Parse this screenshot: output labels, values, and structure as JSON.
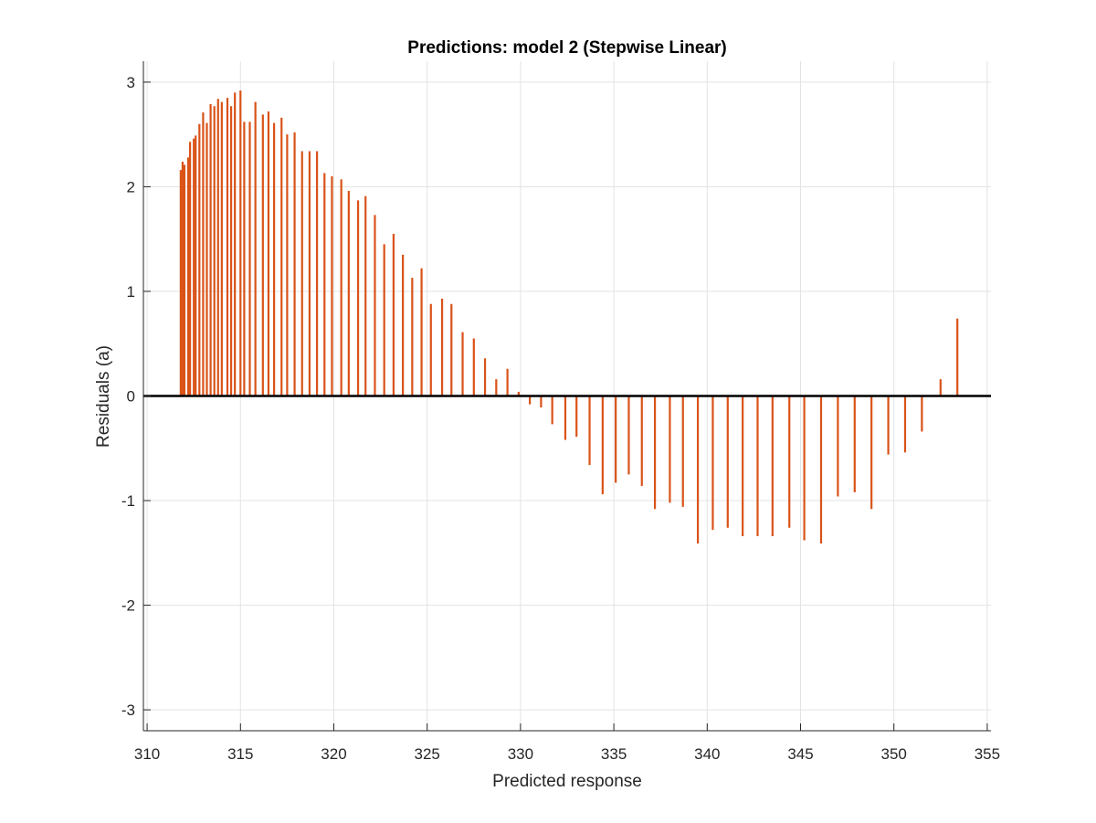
{
  "chart_data": {
    "type": "bar",
    "title": "Predictions: model 2 (Stepwise Linear)",
    "xlabel": "Predicted response",
    "ylabel": "Residuals (a)",
    "xlim": [
      309.8,
      355.2
    ],
    "ylim": [
      -3.2,
      3.2
    ],
    "xticks": [
      310,
      315,
      320,
      325,
      330,
      335,
      340,
      345,
      350,
      355
    ],
    "yticks": [
      -3,
      -2,
      -1,
      0,
      1,
      2,
      3
    ],
    "grid": true,
    "bar_color": "#D95319",
    "zero_line_color": "#000000",
    "x": [
      311.8,
      311.9,
      312.0,
      312.2,
      312.3,
      312.5,
      312.6,
      312.8,
      313.0,
      313.2,
      313.4,
      313.6,
      313.8,
      314.0,
      314.3,
      314.5,
      314.7,
      315.0,
      315.2,
      315.5,
      315.8,
      316.2,
      316.5,
      316.8,
      317.2,
      317.5,
      317.9,
      318.3,
      318.7,
      319.1,
      319.5,
      319.9,
      320.4,
      320.8,
      321.3,
      321.7,
      322.2,
      322.7,
      323.2,
      323.7,
      324.2,
      324.7,
      325.2,
      325.8,
      326.3,
      326.9,
      327.5,
      328.1,
      328.7,
      329.3,
      329.9,
      330.5,
      331.1,
      331.7,
      332.4,
      333.0,
      333.7,
      334.4,
      335.1,
      335.8,
      336.5,
      337.2,
      338.0,
      338.7,
      339.5,
      340.3,
      341.1,
      341.9,
      342.7,
      343.5,
      344.4,
      345.2,
      346.1,
      347.0,
      347.9,
      348.8,
      349.7,
      350.6,
      351.5,
      352.5,
      353.4
    ],
    "y": [
      2.16,
      2.24,
      2.21,
      2.28,
      2.43,
      2.46,
      2.49,
      2.6,
      2.71,
      2.61,
      2.79,
      2.77,
      2.84,
      2.81,
      2.85,
      2.77,
      2.9,
      2.92,
      2.62,
      2.62,
      2.81,
      2.69,
      2.72,
      2.61,
      2.66,
      2.5,
      2.52,
      2.34,
      2.34,
      2.34,
      2.13,
      2.1,
      2.07,
      1.96,
      1.87,
      1.91,
      1.73,
      1.45,
      1.55,
      1.35,
      1.13,
      1.22,
      0.88,
      0.93,
      0.88,
      0.61,
      0.55,
      0.36,
      0.16,
      0.26,
      0.04,
      -0.08,
      -0.11,
      -0.27,
      -0.42,
      -0.39,
      -0.66,
      -0.94,
      -0.83,
      -0.75,
      -0.86,
      -1.08,
      -1.02,
      -1.06,
      -1.41,
      -1.28,
      -1.26,
      -1.34,
      -1.34,
      -1.34,
      -1.26,
      -1.38,
      -1.41,
      -0.96,
      -0.92,
      -1.08,
      -0.56,
      -0.54,
      -0.34,
      0.16,
      0.74
    ]
  }
}
